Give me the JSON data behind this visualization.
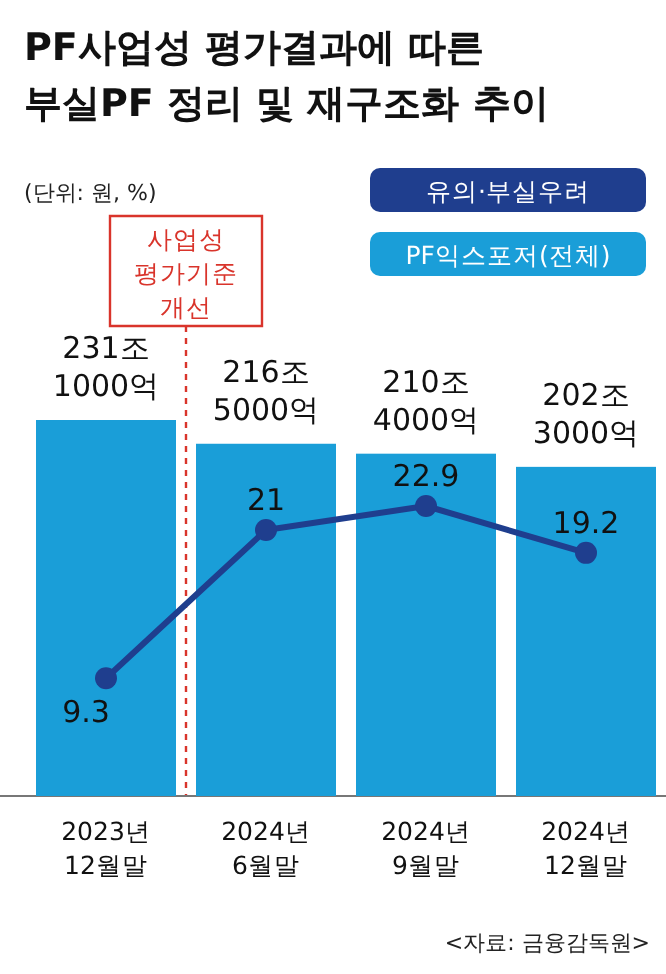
{
  "chart_data": {
    "type": "bar",
    "title": "PF사업성 평가결과에 따른\n부실PF 정리 및 재구조화 추이",
    "categories": [
      "2023년 12월말",
      "2024년 6월말",
      "2024년 9월말",
      "2024년 12월말"
    ],
    "series": [
      {
        "name": "PF익스포저(전체)",
        "color": "#1a9ed8",
        "values": [
          231.1,
          216.5,
          210.4,
          202.3
        ],
        "value_labels": [
          "231조 1000억",
          "216조 5000억",
          "210조 4000억",
          "202조 3000억"
        ]
      },
      {
        "name": "유의·부실우려",
        "type": "line",
        "axis": "y2",
        "color": "#1f3e8e",
        "values": [
          9.3,
          21,
          22.9,
          19.2
        ],
        "value_labels": [
          "9.3",
          "21",
          "22.9",
          "19.2"
        ]
      }
    ],
    "legend": "top right",
    "marker": "circle",
    "line_style": "solid",
    "annotations": [
      "(단위: 원, %)",
      "사업성 평가기준 개선",
      "<자료: 금융감독원>"
    ]
  }
}
